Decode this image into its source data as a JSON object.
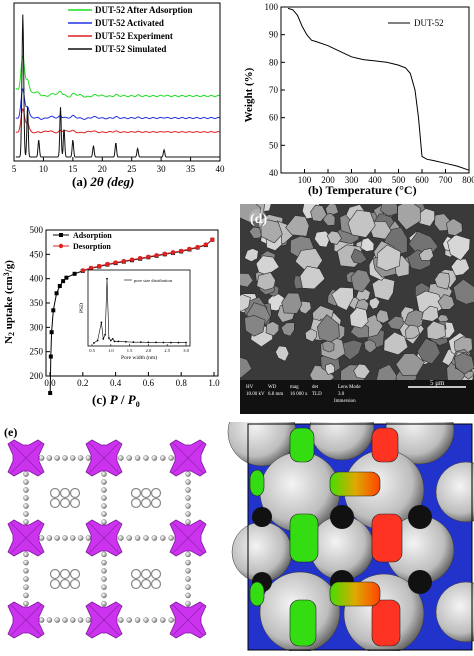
{
  "panels": {
    "a": {
      "label": "(a)",
      "xaxis": "2θ (deg)"
    },
    "b": {
      "label": "(b)",
      "xaxis": "Temperature (°C)",
      "yaxis": "Weight (%)"
    },
    "c": {
      "label": "(c)",
      "xaxis": "P / P0",
      "yaxis": "N2 uptake (cm3/g)",
      "inset": {
        "label": "pore size distribution",
        "xaxis": "Pore width (nm)",
        "yaxis": "PSD"
      }
    },
    "d": {
      "label": "(d)",
      "sem_bar": {
        "fields": [
          "HV",
          "WD",
          "mag",
          "det",
          "Lens Mode"
        ],
        "values": [
          "10.00 kV",
          "6.8 mm",
          "16 000 x",
          "TLD",
          "3.0"
        ],
        "mode": "Immersion",
        "scale": "5 μm"
      }
    },
    "e": {
      "label": "(e)"
    }
  },
  "chart_data": [
    {
      "panel": "a",
      "type": "line",
      "xlabel": "2θ (deg)",
      "ylabel": "",
      "xlim": [
        5,
        40
      ],
      "xticks": [
        5,
        10,
        15,
        20,
        25,
        30,
        35,
        40
      ],
      "series": [
        {
          "name": "DUT-52 After Adsorption",
          "color": "#22dd22",
          "offset": 3.0
        },
        {
          "name": "DUT-52 Activated",
          "color": "#2233dd",
          "offset": 2.0
        },
        {
          "name": "DUT-52 Experiment",
          "color": "#dd2222",
          "offset": 1.0
        },
        {
          "name": "DUT-52 Simulated",
          "color": "#111111",
          "offset": 0.0
        }
      ]
    },
    {
      "panel": "b",
      "type": "line",
      "xlabel": "Temperature (°C)",
      "ylabel": "Weight (%)",
      "xlim": [
        0,
        800
      ],
      "ylim": [
        40,
        100
      ],
      "xticks": [
        100,
        200,
        300,
        400,
        500,
        600,
        700,
        800
      ],
      "yticks": [
        40,
        50,
        60,
        70,
        80,
        90,
        100
      ],
      "series": [
        {
          "name": "DUT-52",
          "color": "#000000",
          "x": [
            30,
            50,
            70,
            90,
            110,
            130,
            150,
            200,
            250,
            300,
            350,
            400,
            450,
            500,
            530,
            550,
            570,
            585,
            600,
            620,
            650,
            700,
            750,
            800
          ],
          "y": [
            99.5,
            99,
            97,
            93,
            90,
            88,
            87.5,
            86,
            84,
            82,
            81,
            80.5,
            80,
            79,
            78,
            76,
            70,
            60,
            46,
            45,
            44.5,
            43.5,
            42.5,
            41
          ]
        }
      ]
    },
    {
      "panel": "c",
      "type": "line",
      "xlabel": "P / P0",
      "ylabel": "N2 uptake (cm3/g)",
      "xlim": [
        0,
        1
      ],
      "ylim": [
        200,
        500
      ],
      "xticks": [
        0.0,
        0.2,
        0.4,
        0.6,
        0.8,
        1.0
      ],
      "yticks": [
        200,
        250,
        300,
        350,
        400,
        450,
        500
      ],
      "series": [
        {
          "name": "Adsorption",
          "color": "#000000",
          "marker": "square",
          "x": [
            0.001,
            0.005,
            0.01,
            0.02,
            0.04,
            0.06,
            0.08,
            0.1,
            0.15,
            0.2,
            0.25,
            0.3,
            0.35,
            0.4,
            0.45,
            0.5,
            0.55,
            0.6,
            0.65,
            0.7,
            0.75,
            0.8,
            0.85,
            0.9,
            0.95,
            0.99
          ],
          "y": [
            165,
            240,
            290,
            335,
            370,
            385,
            395,
            402,
            410,
            416,
            421,
            425,
            429,
            432,
            435,
            438,
            441,
            444,
            447,
            450,
            453,
            456,
            460,
            464,
            469,
            480
          ]
        },
        {
          "name": "Desorption",
          "color": "#dd2222",
          "marker": "circle",
          "x": [
            0.99,
            0.95,
            0.9,
            0.85,
            0.8,
            0.75,
            0.7,
            0.65,
            0.6,
            0.55,
            0.5,
            0.45,
            0.4,
            0.35,
            0.3,
            0.25,
            0.2
          ],
          "y": [
            480,
            470,
            465,
            461,
            457,
            454,
            451,
            448,
            445,
            442,
            439,
            436,
            433,
            430,
            426,
            422,
            417
          ]
        }
      ]
    },
    {
      "panel": "c-inset",
      "type": "line",
      "xlabel": "Pore width (nm)",
      "ylabel": "PSD",
      "xlim": [
        0.5,
        3.0
      ],
      "xticks": [
        0.5,
        1.0,
        1.5,
        2.0,
        2.5,
        3.0
      ],
      "series": [
        {
          "name": "pore size distribution",
          "color": "#000000",
          "x": [
            0.55,
            0.65,
            0.75,
            0.8,
            0.85,
            0.9,
            0.95,
            1.0,
            1.05,
            1.1,
            1.2,
            1.4,
            1.6,
            1.8,
            2.0,
            2.2,
            2.4,
            2.6,
            2.8,
            3.0
          ],
          "y": [
            0.0,
            0.3,
            2.5,
            0.5,
            1.0,
            7.8,
            0.6,
            0.3,
            0.5,
            0.2,
            0.2,
            0.15,
            0.1,
            0.1,
            0.08,
            0.08,
            0.06,
            0.05,
            0.05,
            0.04
          ]
        }
      ]
    }
  ]
}
